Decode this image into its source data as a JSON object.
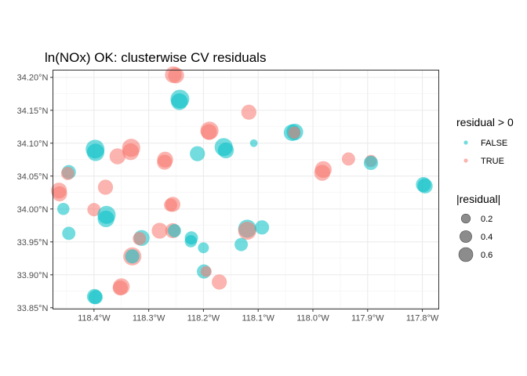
{
  "chart_data": {
    "type": "scatter",
    "title": "ln(NOx) OK: clusterwise CV residuals",
    "xlabel": "",
    "ylabel": "",
    "xlim": [
      -118.475,
      -117.77
    ],
    "ylim": [
      33.848,
      34.211
    ],
    "grid": true,
    "x_ticks": [
      {
        "value": -118.4,
        "label": "118.4°W"
      },
      {
        "value": -118.3,
        "label": "118.3°W"
      },
      {
        "value": -118.2,
        "label": "118.2°W"
      },
      {
        "value": -118.1,
        "label": "118.1°W"
      },
      {
        "value": -118.0,
        "label": "118.0°W"
      },
      {
        "value": -117.9,
        "label": "117.9°W"
      },
      {
        "value": -117.8,
        "label": "117.8°W"
      }
    ],
    "y_ticks": [
      {
        "value": 33.85,
        "label": "33.85°N"
      },
      {
        "value": 33.9,
        "label": "33.90°N"
      },
      {
        "value": 33.95,
        "label": "33.95°N"
      },
      {
        "value": 34.0,
        "label": "34.00°N"
      },
      {
        "value": 34.05,
        "label": "34.05°N"
      },
      {
        "value": 34.1,
        "label": "34.10°N"
      },
      {
        "value": 34.15,
        "label": "34.15°N"
      },
      {
        "value": 34.2,
        "label": "34.20°N"
      }
    ],
    "legend_color": {
      "title": "residual > 0",
      "placement": "right",
      "entries": [
        {
          "label": "FALSE",
          "color": "#00BFC4"
        },
        {
          "label": "TRUE",
          "color": "#F8766D"
        }
      ]
    },
    "legend_size": {
      "title": "|residual|",
      "placement": "right",
      "entries": [
        {
          "label": "0.2",
          "value": 0.2
        },
        {
          "label": "0.4",
          "value": 0.4
        },
        {
          "label": "0.6",
          "value": 0.6
        }
      ]
    },
    "points": [
      {
        "x": -118.255,
        "y": 34.204,
        "residual_positive": true,
        "abs_residual": 0.45
      },
      {
        "x": -118.25,
        "y": 34.203,
        "residual_positive": true,
        "abs_residual": 0.4
      },
      {
        "x": -118.243,
        "y": 34.167,
        "residual_positive": false,
        "abs_residual": 0.6
      },
      {
        "x": -118.244,
        "y": 34.163,
        "residual_positive": false,
        "abs_residual": 0.45
      },
      {
        "x": -118.117,
        "y": 34.147,
        "residual_positive": true,
        "abs_residual": 0.35
      },
      {
        "x": -118.189,
        "y": 34.119,
        "residual_positive": true,
        "abs_residual": 0.55
      },
      {
        "x": -118.19,
        "y": 34.117,
        "residual_positive": true,
        "abs_residual": 0.4
      },
      {
        "x": -118.163,
        "y": 34.094,
        "residual_positive": false,
        "abs_residual": 0.55
      },
      {
        "x": -118.159,
        "y": 34.089,
        "residual_positive": false,
        "abs_residual": 0.4
      },
      {
        "x": -118.108,
        "y": 34.1,
        "residual_positive": false,
        "abs_residual": 0.05
      },
      {
        "x": -118.033,
        "y": 34.117,
        "residual_positive": false,
        "abs_residual": 0.45
      },
      {
        "x": -118.038,
        "y": 34.116,
        "residual_positive": false,
        "abs_residual": 0.45
      },
      {
        "x": -118.034,
        "y": 34.116,
        "residual_positive": true,
        "abs_residual": 0.2
      },
      {
        "x": -118.398,
        "y": 34.091,
        "residual_positive": false,
        "abs_residual": 0.6
      },
      {
        "x": -118.397,
        "y": 34.086,
        "residual_positive": false,
        "abs_residual": 0.5
      },
      {
        "x": -118.332,
        "y": 34.093,
        "residual_positive": true,
        "abs_residual": 0.55
      },
      {
        "x": -118.333,
        "y": 34.087,
        "residual_positive": true,
        "abs_residual": 0.45
      },
      {
        "x": -118.357,
        "y": 34.08,
        "residual_positive": true,
        "abs_residual": 0.4
      },
      {
        "x": -118.27,
        "y": 34.075,
        "residual_positive": true,
        "abs_residual": 0.4
      },
      {
        "x": -118.271,
        "y": 34.071,
        "residual_positive": true,
        "abs_residual": 0.35
      },
      {
        "x": -118.211,
        "y": 34.084,
        "residual_positive": false,
        "abs_residual": 0.35
      },
      {
        "x": -117.981,
        "y": 34.06,
        "residual_positive": true,
        "abs_residual": 0.45
      },
      {
        "x": -117.983,
        "y": 34.055,
        "residual_positive": true,
        "abs_residual": 0.4
      },
      {
        "x": -117.935,
        "y": 34.076,
        "residual_positive": true,
        "abs_residual": 0.25
      },
      {
        "x": -117.894,
        "y": 34.073,
        "residual_positive": true,
        "abs_residual": 0.2
      },
      {
        "x": -117.894,
        "y": 34.07,
        "residual_positive": false,
        "abs_residual": 0.3
      },
      {
        "x": -118.446,
        "y": 34.056,
        "residual_positive": false,
        "abs_residual": 0.3
      },
      {
        "x": -118.448,
        "y": 34.054,
        "residual_positive": true,
        "abs_residual": 0.25
      },
      {
        "x": -118.464,
        "y": 34.028,
        "residual_positive": true,
        "abs_residual": 0.4
      },
      {
        "x": -118.463,
        "y": 34.023,
        "residual_positive": true,
        "abs_residual": 0.35
      },
      {
        "x": -118.379,
        "y": 34.033,
        "residual_positive": true,
        "abs_residual": 0.35
      },
      {
        "x": -117.798,
        "y": 34.037,
        "residual_positive": false,
        "abs_residual": 0.35
      },
      {
        "x": -117.795,
        "y": 34.035,
        "residual_positive": false,
        "abs_residual": 0.35
      },
      {
        "x": -118.456,
        "y": 34.0,
        "residual_positive": false,
        "abs_residual": 0.2
      },
      {
        "x": -118.4,
        "y": 33.999,
        "residual_positive": true,
        "abs_residual": 0.25
      },
      {
        "x": -118.377,
        "y": 33.991,
        "residual_positive": false,
        "abs_residual": 0.55
      },
      {
        "x": -118.378,
        "y": 33.985,
        "residual_positive": false,
        "abs_residual": 0.45
      },
      {
        "x": -118.256,
        "y": 34.007,
        "residual_positive": true,
        "abs_residual": 0.35
      },
      {
        "x": -118.26,
        "y": 34.006,
        "residual_positive": true,
        "abs_residual": 0.25
      },
      {
        "x": -118.446,
        "y": 33.963,
        "residual_positive": false,
        "abs_residual": 0.25
      },
      {
        "x": -118.313,
        "y": 33.956,
        "residual_positive": false,
        "abs_residual": 0.4
      },
      {
        "x": -118.317,
        "y": 33.955,
        "residual_positive": true,
        "abs_residual": 0.25
      },
      {
        "x": -118.28,
        "y": 33.967,
        "residual_positive": true,
        "abs_residual": 0.4
      },
      {
        "x": -118.256,
        "y": 33.967,
        "residual_positive": true,
        "abs_residual": 0.35
      },
      {
        "x": -118.253,
        "y": 33.967,
        "residual_positive": false,
        "abs_residual": 0.25
      },
      {
        "x": -118.222,
        "y": 33.956,
        "residual_positive": false,
        "abs_residual": 0.25
      },
      {
        "x": -118.223,
        "y": 33.951,
        "residual_positive": false,
        "abs_residual": 0.2
      },
      {
        "x": -118.2,
        "y": 33.941,
        "residual_positive": false,
        "abs_residual": 0.15
      },
      {
        "x": -118.12,
        "y": 33.97,
        "residual_positive": false,
        "abs_residual": 0.55
      },
      {
        "x": -118.12,
        "y": 33.967,
        "residual_positive": true,
        "abs_residual": 0.55
      },
      {
        "x": -118.093,
        "y": 33.972,
        "residual_positive": false,
        "abs_residual": 0.3
      },
      {
        "x": -118.131,
        "y": 33.946,
        "residual_positive": false,
        "abs_residual": 0.25
      },
      {
        "x": -118.33,
        "y": 33.928,
        "residual_positive": true,
        "abs_residual": 0.55
      },
      {
        "x": -118.33,
        "y": 33.928,
        "residual_positive": false,
        "abs_residual": 0.3
      },
      {
        "x": -118.199,
        "y": 33.905,
        "residual_positive": false,
        "abs_residual": 0.3
      },
      {
        "x": -118.195,
        "y": 33.905,
        "residual_positive": true,
        "abs_residual": 0.15
      },
      {
        "x": -118.171,
        "y": 33.889,
        "residual_positive": true,
        "abs_residual": 0.35
      },
      {
        "x": -118.35,
        "y": 33.882,
        "residual_positive": true,
        "abs_residual": 0.45
      },
      {
        "x": -118.352,
        "y": 33.88,
        "residual_positive": true,
        "abs_residual": 0.35
      },
      {
        "x": -118.399,
        "y": 33.867,
        "residual_positive": false,
        "abs_residual": 0.35
      },
      {
        "x": -118.397,
        "y": 33.866,
        "residual_positive": false,
        "abs_residual": 0.3
      }
    ]
  }
}
